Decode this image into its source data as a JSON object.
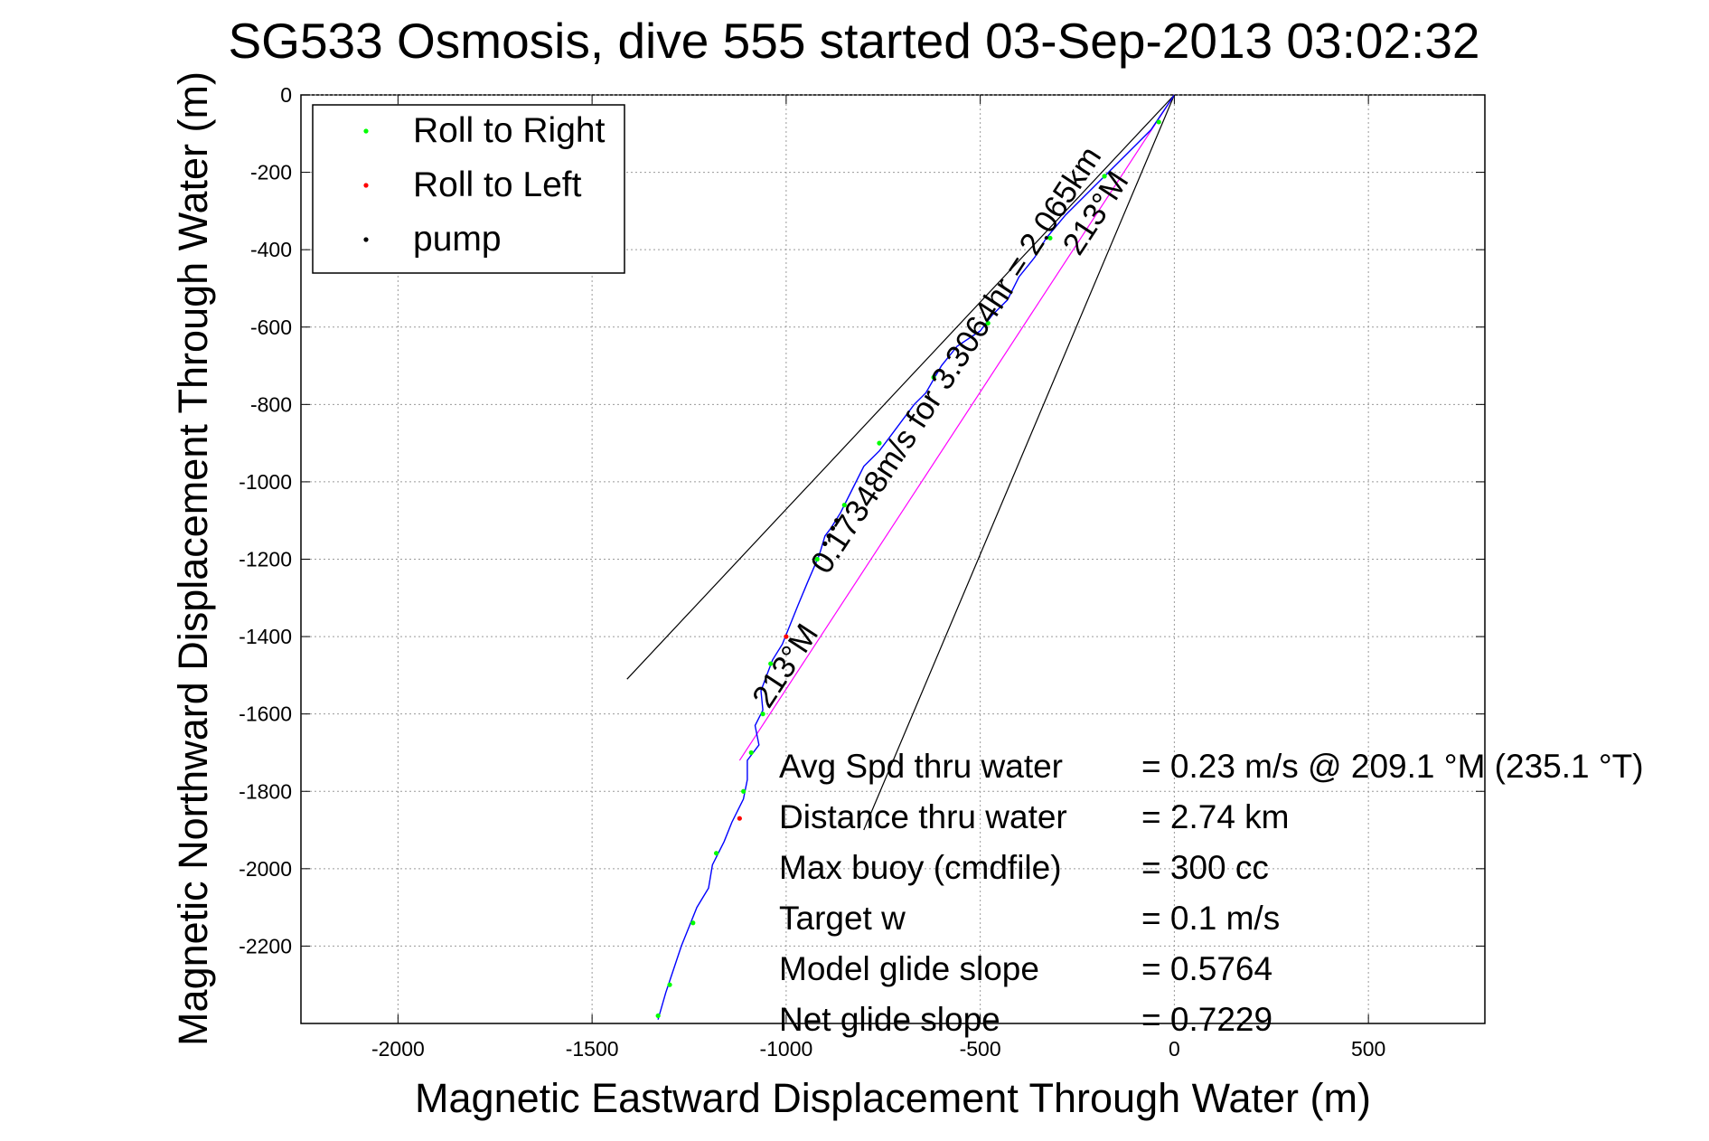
{
  "chart_data": {
    "type": "line",
    "title": "SG533 Osmosis, dive 555 started 03-Sep-2013 03:02:32",
    "xlabel": "Magnetic Eastward Displacement Through Water (m)",
    "ylabel": "Magnetic Northward Displacement Through Water (m)",
    "xlim": [
      -2250,
      800
    ],
    "ylim": [
      -2400,
      0
    ],
    "xticks": [
      -2000,
      -1500,
      -1000,
      -500,
      0,
      500
    ],
    "yticks": [
      0,
      -200,
      -400,
      -600,
      -800,
      -1000,
      -1200,
      -1400,
      -1600,
      -1800,
      -2000,
      -2200
    ],
    "grid": true,
    "legend_position": "top-left",
    "legend": [
      {
        "label": "Roll to Right",
        "color": "#00ff00"
      },
      {
        "label": "Roll to Left",
        "color": "#ff0000"
      },
      {
        "label": "pump",
        "color": "#000000"
      }
    ],
    "track_color": "#0000ff",
    "track": [
      [
        0,
        0
      ],
      [
        -60,
        -90
      ],
      [
        -130,
        -160
      ],
      [
        -210,
        -240
      ],
      [
        -280,
        -310
      ],
      [
        -330,
        -370
      ],
      [
        -360,
        -420
      ],
      [
        -400,
        -470
      ],
      [
        -430,
        -530
      ],
      [
        -470,
        -570
      ],
      [
        -500,
        -610
      ],
      [
        -560,
        -650
      ],
      [
        -600,
        -700
      ],
      [
        -640,
        -770
      ],
      [
        -670,
        -800
      ],
      [
        -700,
        -840
      ],
      [
        -730,
        -880
      ],
      [
        -760,
        -920
      ],
      [
        -800,
        -960
      ],
      [
        -830,
        -1020
      ],
      [
        -860,
        -1080
      ],
      [
        -885,
        -1120
      ],
      [
        -900,
        -1140
      ],
      [
        -915,
        -1190
      ],
      [
        -945,
        -1260
      ],
      [
        -970,
        -1320
      ],
      [
        -990,
        -1370
      ],
      [
        -1010,
        -1420
      ],
      [
        -1035,
        -1460
      ],
      [
        -1050,
        -1500
      ],
      [
        -1065,
        -1540
      ],
      [
        -1060,
        -1590
      ],
      [
        -1080,
        -1630
      ],
      [
        -1070,
        -1680
      ],
      [
        -1100,
        -1720
      ],
      [
        -1100,
        -1770
      ],
      [
        -1110,
        -1820
      ],
      [
        -1140,
        -1880
      ],
      [
        -1160,
        -1930
      ],
      [
        -1190,
        -1990
      ],
      [
        -1200,
        -2050
      ],
      [
        -1230,
        -2100
      ],
      [
        -1250,
        -2150
      ],
      [
        -1270,
        -2200
      ],
      [
        -1290,
        -2260
      ],
      [
        -1310,
        -2320
      ],
      [
        -1330,
        -2390
      ]
    ],
    "roll_to_right": [
      [
        -40,
        -70
      ],
      [
        -180,
        -210
      ],
      [
        -320,
        -370
      ],
      [
        -480,
        -590
      ],
      [
        -620,
        -730
      ],
      [
        -760,
        -900
      ],
      [
        -850,
        -1060
      ],
      [
        -920,
        -1200
      ],
      [
        -1040,
        -1470
      ],
      [
        -1060,
        -1600
      ],
      [
        -1090,
        -1700
      ],
      [
        -1110,
        -1800
      ],
      [
        -1180,
        -1960
      ],
      [
        -1240,
        -2140
      ],
      [
        -1300,
        -2300
      ],
      [
        -1330,
        -2380
      ]
    ],
    "roll_to_left": [
      [
        -1000,
        -1400
      ],
      [
        -1120,
        -1870
      ]
    ],
    "pump": [
      [
        -870,
        -1100
      ],
      [
        -880,
        -1120
      ],
      [
        -890,
        -1140
      ],
      [
        -900,
        -1160
      ]
    ],
    "heading_line": {
      "from": [
        0,
        0
      ],
      "to": [
        -1120,
        -1720
      ],
      "color": "#ff00ff"
    },
    "current_lines": [
      {
        "from": [
          0,
          0
        ],
        "to": [
          -1410,
          -1510
        ]
      },
      {
        "from": [
          0,
          0
        ],
        "to": [
          -800,
          -1900
        ]
      }
    ],
    "annotations": [
      {
        "text": "0.17348m/s for 3.3064hr = 2.065km",
        "x": -540,
        "y": -700
      },
      {
        "text": "213°M",
        "x": -180,
        "y": -320
      },
      {
        "text": "213°M",
        "x": -980,
        "y": -1490
      }
    ],
    "info": [
      {
        "label": "Avg Spd thru water",
        "value": "=  0.23 m/s @ 209.1 °M (235.1 °T)"
      },
      {
        "label": "Distance thru water",
        "value": "=  2.74 km"
      },
      {
        "label": "Max buoy (cmdfile)",
        "value": "= 300 cc"
      },
      {
        "label": "Target w",
        "value": "= 0.1 m/s"
      },
      {
        "label": "Model glide slope",
        "value": "= 0.5764"
      },
      {
        "label": "Net glide slope",
        "value": "= 0.7229"
      }
    ]
  }
}
